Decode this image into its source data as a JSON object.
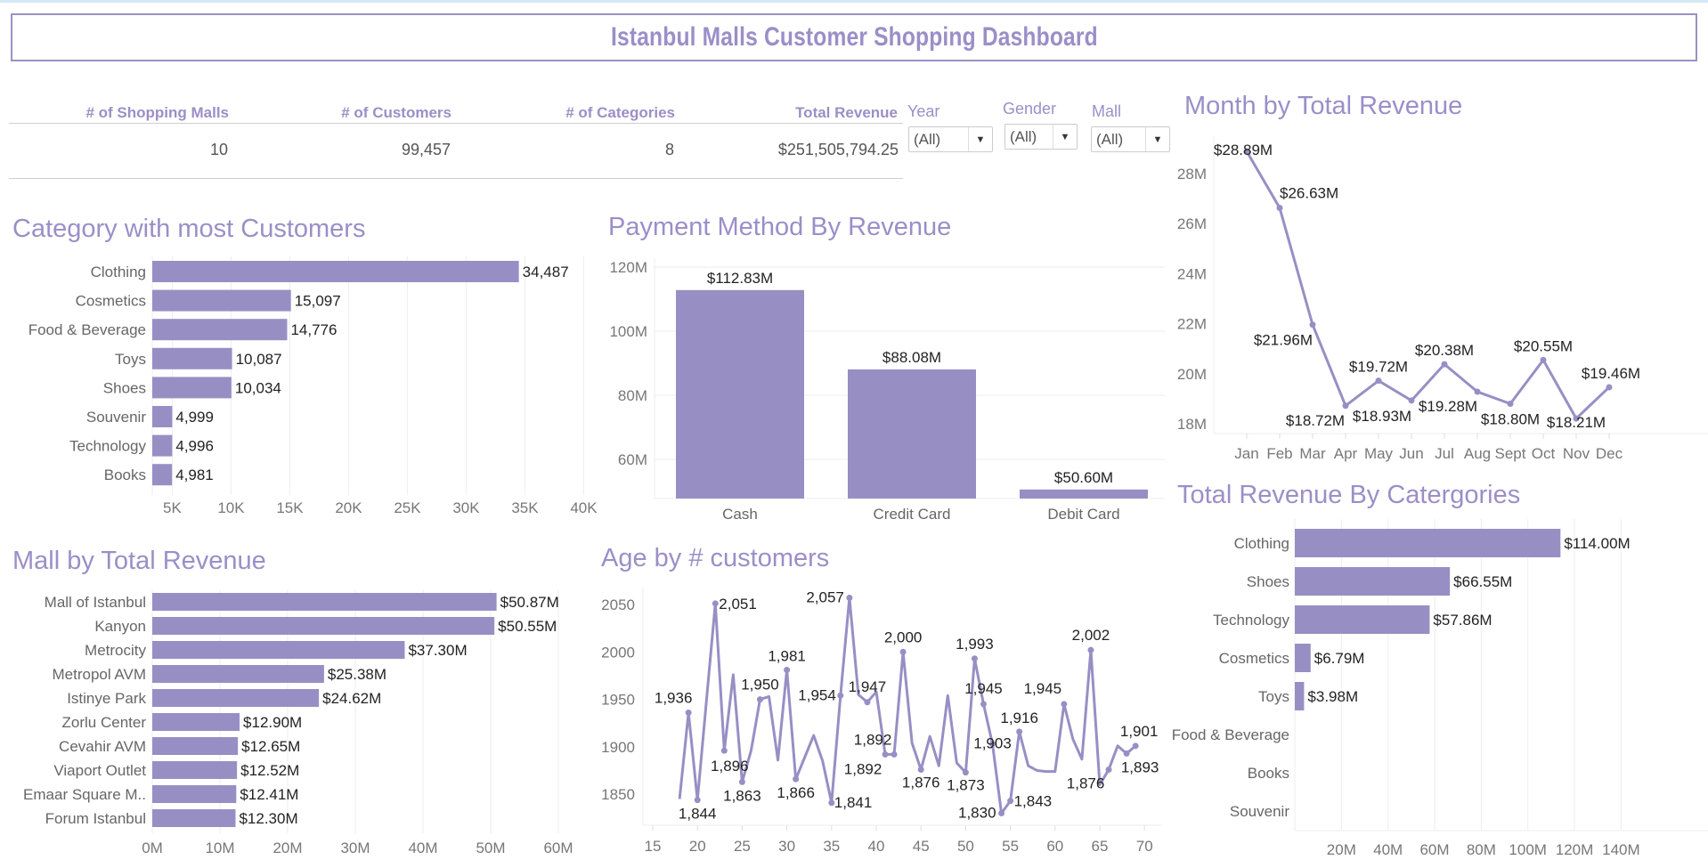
{
  "header": {
    "title": "Istanbul Malls Customer Shopping Dashboard"
  },
  "kpis": [
    {
      "label": "# of Shopping Malls",
      "value": "10"
    },
    {
      "label": "# of Customers",
      "value": "99,457"
    },
    {
      "label": "# of Categories",
      "value": "8"
    },
    {
      "label": "Total Revenue",
      "value": "$251,505,794.25"
    }
  ],
  "filters": [
    {
      "label": "Year",
      "value": "(All)"
    },
    {
      "label": "Gender",
      "value": "(All)"
    },
    {
      "label": "Mall",
      "value": "(All)"
    }
  ],
  "colors": {
    "accent": "#978fc4",
    "title": "#9a8fc8"
  },
  "icons": {
    "dropdown": "caret-down-icon"
  },
  "chart_data": [
    {
      "type": "bar",
      "orientation": "horizontal",
      "title": "Category with most Customers",
      "categories": [
        "Clothing",
        "Cosmetics",
        "Food & Beverage",
        "Toys",
        "Shoes",
        "Souvenir",
        "Technology",
        "Books"
      ],
      "values": [
        34487,
        15097,
        14776,
        10087,
        10034,
        4999,
        4996,
        4981
      ],
      "labels": [
        "34,487",
        "15,097",
        "14,776",
        "10,087",
        "10,034",
        "4,999",
        "4,996",
        "4,981"
      ],
      "xticks": [
        5000,
        10000,
        15000,
        20000,
        25000,
        30000,
        35000,
        40000
      ],
      "xtick_labels": [
        "5K",
        "10K",
        "15K",
        "20K",
        "25K",
        "30K",
        "35K",
        "40K"
      ],
      "xlim": [
        3300,
        41500
      ],
      "grid": true
    },
    {
      "type": "bar",
      "orientation": "vertical",
      "title": "Payment Method By Revenue",
      "categories": [
        "Cash",
        "Credit Card",
        "Debit Card"
      ],
      "values": [
        112.83,
        88.08,
        50.6
      ],
      "labels": [
        "$112.83M",
        "$88.08M",
        "$50.60M"
      ],
      "yticks": [
        60,
        80,
        100,
        120
      ],
      "ytick_labels": [
        "60M",
        "80M",
        "100M",
        "120M"
      ],
      "ylim": [
        47.8,
        122.8
      ],
      "grid": true
    },
    {
      "type": "line",
      "title": "Month by Total Revenue",
      "categories": [
        "Jan",
        "Feb",
        "Mar",
        "Apr",
        "May",
        "Jun",
        "Jul",
        "Aug",
        "Sept",
        "Oct",
        "Nov",
        "Dec"
      ],
      "values": [
        28.89,
        26.63,
        21.96,
        18.72,
        19.72,
        18.93,
        20.38,
        19.28,
        18.8,
        20.55,
        18.21,
        19.46
      ],
      "labels": [
        "$28.89M",
        "$26.63M",
        "$21.96M",
        "$18.72M",
        "$19.72M",
        "$18.93M",
        "$20.38M",
        "$19.28M",
        "$18.80M",
        "$20.55M",
        "$18.21M",
        "$19.46M"
      ],
      "yticks": [
        18,
        20,
        22,
        24,
        26,
        28
      ],
      "ytick_labels": [
        "18M",
        "20M",
        "22M",
        "24M",
        "26M",
        "28M"
      ],
      "ylim": [
        17.6,
        29.5
      ]
    },
    {
      "type": "bar",
      "orientation": "horizontal",
      "title": "Total Revenue By Catergories",
      "categories": [
        "Clothing",
        "Shoes",
        "Technology",
        "Cosmetics",
        "Toys",
        "Food & Beverage",
        "Books",
        "Souvenir"
      ],
      "values": [
        114.0,
        66.55,
        57.86,
        6.79,
        3.98,
        null,
        null,
        null
      ],
      "labels": [
        "$114.00M",
        "$66.55M",
        "$57.86M",
        "$6.79M",
        "$3.98M",
        "",
        "",
        ""
      ],
      "xticks": [
        20,
        40,
        60,
        80,
        100,
        120,
        140
      ],
      "xtick_labels": [
        "20M",
        "40M",
        "60M",
        "80M",
        "100M",
        "120M",
        "140M"
      ],
      "xlim": [
        0,
        148
      ],
      "grid": true
    },
    {
      "type": "bar",
      "orientation": "horizontal",
      "title": "Mall by Total Revenue",
      "categories": [
        "Mall of Istanbul",
        "Kanyon",
        "Metrocity",
        "Metropol AVM",
        "Istinye Park",
        "Zorlu Center",
        "Cevahir AVM",
        "Viaport Outlet",
        "Emaar Square M..",
        "Forum Istanbul"
      ],
      "values": [
        50.87,
        50.55,
        37.3,
        25.38,
        24.62,
        12.9,
        12.65,
        12.52,
        12.41,
        12.3
      ],
      "labels": [
        "$50.87M",
        "$50.55M",
        "$37.30M",
        "$25.38M",
        "$24.62M",
        "$12.90M",
        "$12.65M",
        "$12.52M",
        "$12.41M",
        "$12.30M"
      ],
      "xticks": [
        0,
        10,
        20,
        30,
        40,
        50,
        60
      ],
      "xtick_labels": [
        "0M",
        "10M",
        "20M",
        "30M",
        "40M",
        "50M",
        "60M"
      ],
      "xlim": [
        0,
        65
      ],
      "grid": true
    },
    {
      "type": "line",
      "title": "Age by # customers",
      "x": [
        18,
        19,
        20,
        21,
        22,
        23,
        24,
        25,
        26,
        27,
        28,
        29,
        30,
        31,
        32,
        33,
        34,
        35,
        36,
        37,
        38,
        39,
        40,
        41,
        42,
        43,
        44,
        45,
        46,
        47,
        48,
        49,
        50,
        51,
        52,
        53,
        54,
        55,
        56,
        57,
        58,
        59,
        60,
        61,
        62,
        63,
        64,
        65,
        66,
        67,
        68,
        69
      ],
      "values": [
        1845,
        1936,
        1844,
        1948,
        2051,
        1896,
        1976,
        1863,
        1896,
        1950,
        1953,
        1886,
        1981,
        1866,
        1889,
        1912,
        1885,
        1841,
        1954,
        2057,
        1955,
        1947,
        1958,
        1892,
        1892,
        2000,
        1904,
        1876,
        1911,
        1880,
        1954,
        1883,
        1873,
        1993,
        1945,
        1903,
        1830,
        1843,
        1916,
        1880,
        1875,
        1874,
        1874,
        1945,
        1908,
        1887,
        2002,
        1860,
        1876,
        1901,
        1893,
        1901
      ],
      "labels": [
        "",
        "1,936",
        "1,844",
        "",
        "2,051",
        "1,896",
        "",
        "1,863",
        "",
        "1,950",
        "",
        "",
        "1,981",
        "1,866",
        "",
        "",
        "",
        "1,841",
        "1,954",
        "2,057",
        "",
        "1,947",
        "",
        "1,892",
        "1,892",
        "2,000",
        "",
        "1,876",
        "",
        "",
        "",
        "",
        "1,873",
        "1,993",
        "1,945",
        "1,903",
        "1,830",
        "1,843",
        "1,916",
        "",
        "",
        "",
        "",
        "1,945",
        "",
        "",
        "2,002",
        "",
        "1,876",
        "",
        "1,893",
        "1,901"
      ],
      "xticks": [
        15,
        20,
        25,
        30,
        35,
        40,
        45,
        50,
        55,
        60,
        65,
        70
      ],
      "xtick_labels": [
        "15",
        "20",
        "25",
        "30",
        "35",
        "40",
        "45",
        "50",
        "55",
        "60",
        "65",
        "70"
      ],
      "yticks": [
        1850,
        1900,
        1950,
        2000,
        2050
      ],
      "ytick_labels": [
        "1850",
        "1900",
        "1950",
        "2000",
        "2050"
      ],
      "xlim": [
        13.9,
        72
      ],
      "ylim": [
        1817,
        2068
      ]
    }
  ]
}
